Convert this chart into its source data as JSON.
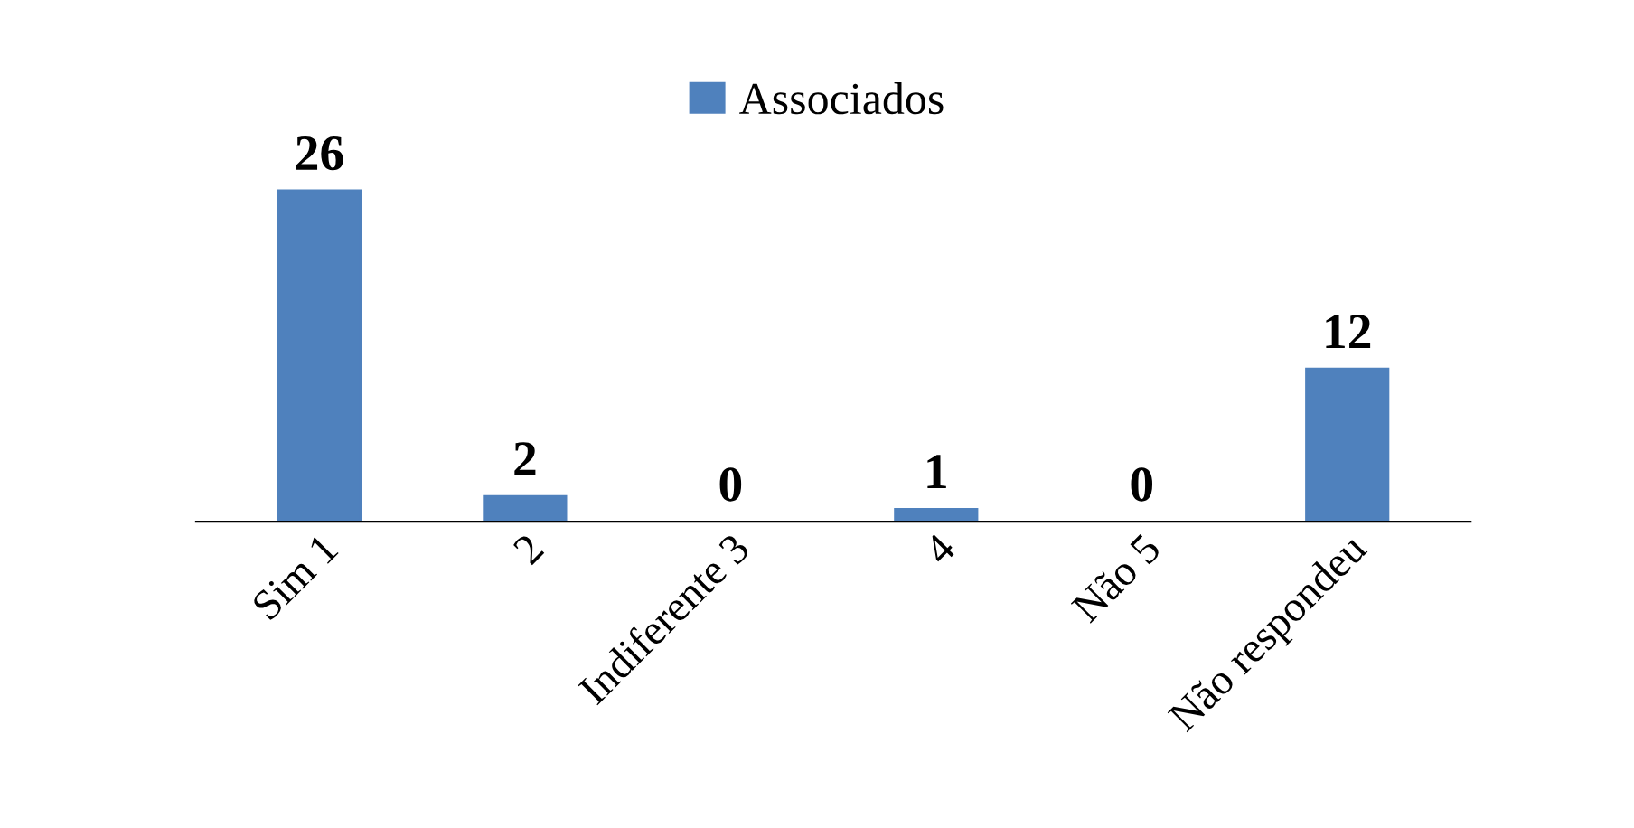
{
  "chart_data": {
    "type": "bar",
    "categories": [
      "Sim 1",
      "2",
      "Indiferente 3",
      "4",
      "Não 5",
      "Não respondeu"
    ],
    "series": [
      {
        "name": "Associados",
        "color": "#4f81bd",
        "values": [
          26,
          2,
          0,
          1,
          0,
          12
        ]
      }
    ],
    "data_labels": true,
    "legend": "top",
    "grid": false
  }
}
